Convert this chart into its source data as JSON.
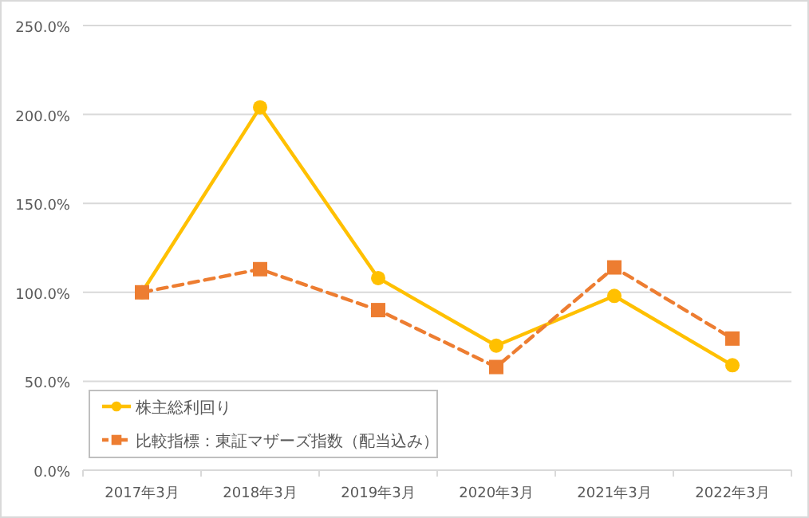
{
  "chart_data": {
    "type": "line",
    "categories": [
      "2017年3月",
      "2018年3月",
      "2019年3月",
      "2020年3月",
      "2021年3月",
      "2022年3月"
    ],
    "series": [
      {
        "name": "株主総利回り",
        "color": "#ffc000",
        "marker": "circle",
        "line_style": "solid",
        "values": [
          100,
          204,
          108,
          70,
          98,
          59
        ]
      },
      {
        "name": "比較指標：東証マザーズ指数（配当込み）",
        "color": "#ed7d31",
        "marker": "square",
        "line_style": "dashed",
        "values": [
          100,
          113,
          90,
          58,
          114,
          74
        ]
      }
    ],
    "ylim": [
      0,
      250
    ],
    "yticks": [
      {
        "value": 0,
        "label": "0.0%"
      },
      {
        "value": 50,
        "label": "50.0%"
      },
      {
        "value": 100,
        "label": "100.0%"
      },
      {
        "value": 150,
        "label": "150.0%"
      },
      {
        "value": 200,
        "label": "200.0%"
      },
      {
        "value": 250,
        "label": "250.0%"
      }
    ],
    "grid": "y",
    "legend": "bottom left"
  }
}
